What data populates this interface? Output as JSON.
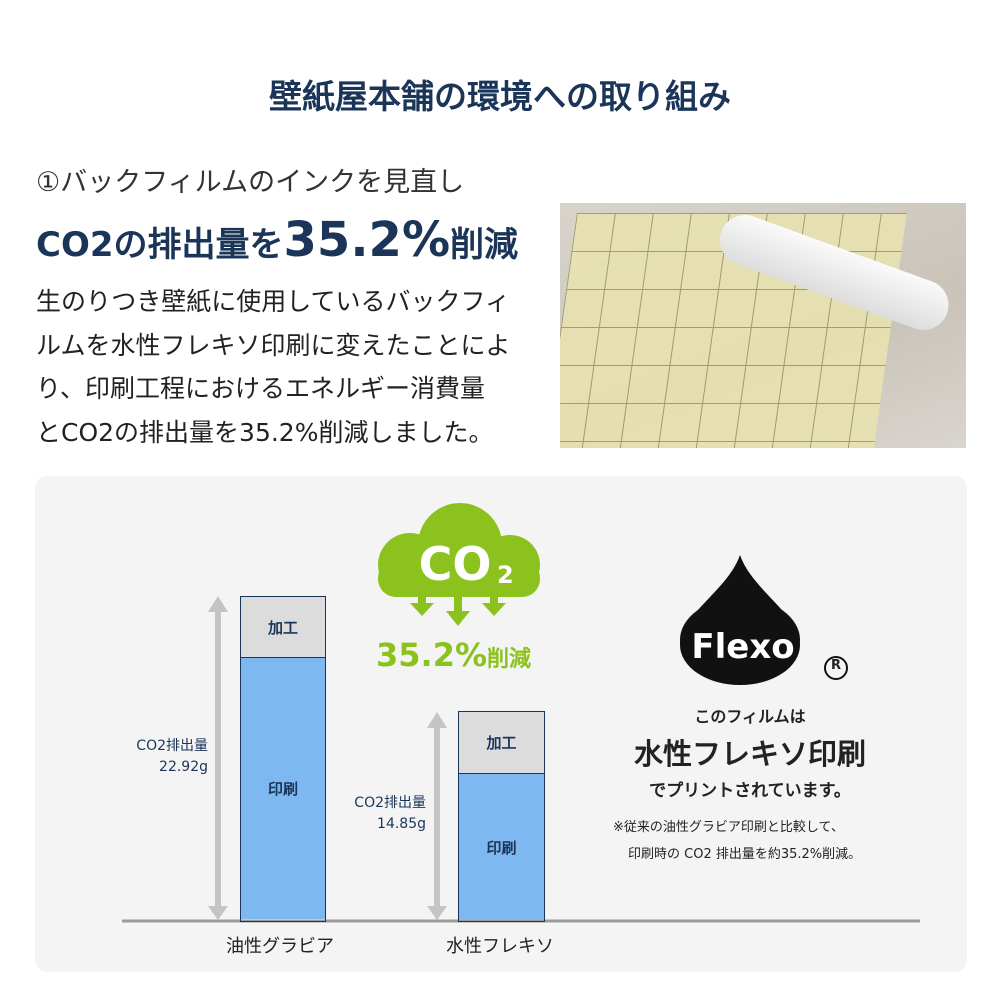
{
  "title": "壁紙屋本舗の環境への取り組み",
  "subtitle": "①バックフィルムのインクを見直し",
  "headline": {
    "pre": "CO2の排出量を",
    "number": "35.2%",
    "post": "削減"
  },
  "body": [
    "生のりつき壁紙に使用しているバックフィ",
    "ルムを水性フレキソ印刷に変えたことによ",
    "り、印刷工程におけるエネルギー消費量",
    "とCO2の排出量を35.2%削減しました。"
  ],
  "cloud": {
    "text": "CO",
    "sub": "2",
    "reduction": "35.2%",
    "reduction_suffix": "削減",
    "color": "#8cc21e"
  },
  "flexo": {
    "logo": "Flexo",
    "registered": "®",
    "line1": "このフィルムは",
    "line2": "水性フレキソ印刷",
    "line3": "でプリントされています。",
    "note1": "※従来の油性グラビア印刷と比較して、",
    "note2": "印刷時の CO2 排出量を約35.2%削減。"
  },
  "chart_data": {
    "type": "bar",
    "stacked": true,
    "categories": [
      "油性グラビア",
      "水性フレキソ"
    ],
    "segments": [
      "印刷",
      "加工"
    ],
    "totals": [
      {
        "label": "CO2排出量",
        "value": "22.92g"
      },
      {
        "label": "CO2排出量",
        "value": "14.85g"
      }
    ],
    "values": [
      22.92,
      14.85
    ],
    "colors": {
      "印刷": "#7db8f0",
      "加工": "#dcdcdc"
    }
  }
}
